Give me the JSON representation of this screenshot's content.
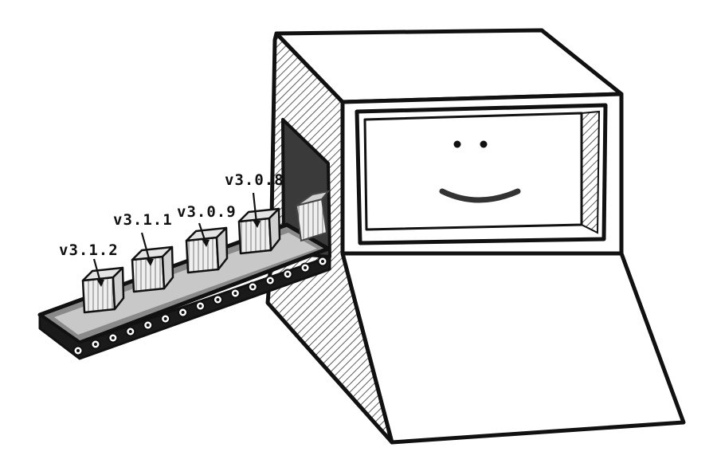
{
  "packages": [
    {
      "version": "v3.1.2"
    },
    {
      "version": "v3.1.1"
    },
    {
      "version": "v3.0.9"
    },
    {
      "version": "v3.0.8"
    }
  ],
  "colors": {
    "ink": "#111111",
    "belt_gray": "#8a8a8a",
    "slot_dark": "#3a3a3a",
    "crate_fill": "#ececec",
    "hatch": "#555555"
  },
  "icons": {
    "robot": "smiling-computer-machine-icon",
    "belt": "conveyor-belt-icon",
    "crate": "package-crate-icon"
  }
}
